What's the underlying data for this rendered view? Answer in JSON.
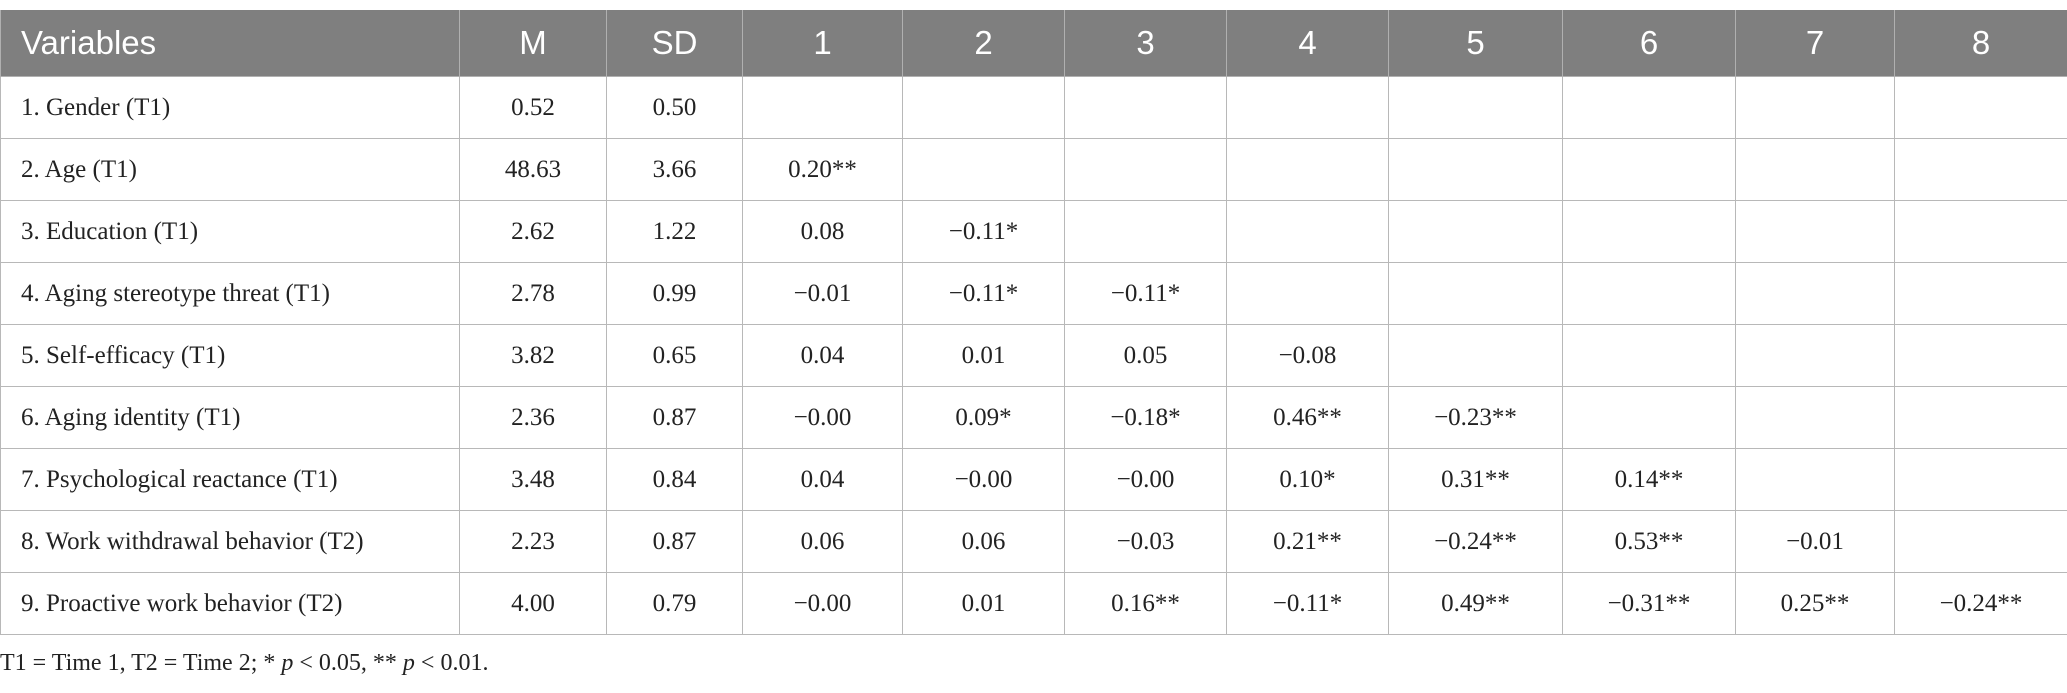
{
  "table": {
    "headers": [
      "Variables",
      "M",
      "SD",
      "1",
      "2",
      "3",
      "4",
      "5",
      "6",
      "7",
      "8"
    ],
    "rows": [
      {
        "variable": "1. Gender (T1)",
        "m": "0.52",
        "sd": "0.50",
        "r": []
      },
      {
        "variable": "2. Age (T1)",
        "m": "48.63",
        "sd": "3.66",
        "r": [
          "0.20**"
        ]
      },
      {
        "variable": "3. Education (T1)",
        "m": "2.62",
        "sd": "1.22",
        "r": [
          "0.08",
          "−0.11*"
        ]
      },
      {
        "variable": "4. Aging stereotype threat (T1)",
        "m": "2.78",
        "sd": "0.99",
        "r": [
          "−0.01",
          "−0.11*",
          "−0.11*"
        ]
      },
      {
        "variable": "5. Self-efficacy (T1)",
        "m": "3.82",
        "sd": "0.65",
        "r": [
          "0.04",
          "0.01",
          "0.05",
          "−0.08"
        ]
      },
      {
        "variable": "6. Aging identity (T1)",
        "m": "2.36",
        "sd": "0.87",
        "r": [
          "−0.00",
          "0.09*",
          "−0.18*",
          "0.46**",
          "−0.23**"
        ]
      },
      {
        "variable": "7. Psychological reactance (T1)",
        "m": "3.48",
        "sd": "0.84",
        "r": [
          "0.04",
          "−0.00",
          "−0.00",
          "0.10*",
          "0.31**",
          "0.14**"
        ]
      },
      {
        "variable": "8. Work withdrawal behavior (T2)",
        "m": "2.23",
        "sd": "0.87",
        "r": [
          "0.06",
          "0.06",
          "−0.03",
          "0.21**",
          "−0.24**",
          "0.53**",
          "−0.01"
        ]
      },
      {
        "variable": "9. Proactive work behavior (T2)",
        "m": "4.00",
        "sd": "0.79",
        "r": [
          "−0.00",
          "0.01",
          "0.16**",
          "−0.11*",
          "0.49**",
          "−0.31**",
          "0.25**",
          "−0.24**"
        ]
      }
    ],
    "footnote": [
      "T1 = Time 1, T2 = Time 2; * ",
      "p",
      " < 0.05, ** ",
      "p",
      " < 0.01."
    ]
  }
}
